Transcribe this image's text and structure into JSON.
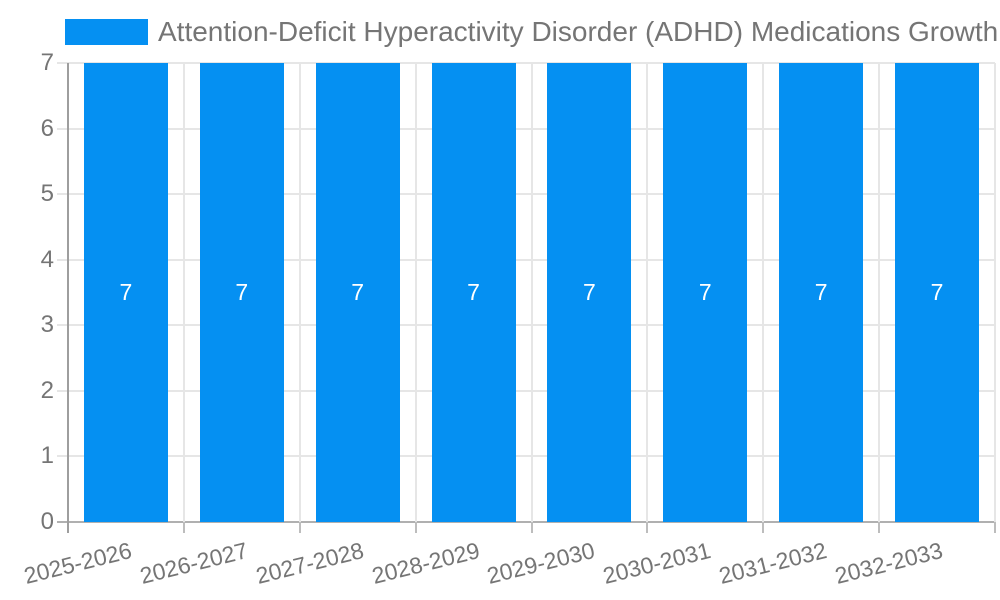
{
  "legend": {
    "series_label": "Attention-Deficit Hyperactivity Disorder (ADHD) Medications Growth (%)"
  },
  "chart_data": {
    "type": "bar",
    "title": "Attention-Deficit Hyperactivity Disorder (ADHD) Medications Growth (%)",
    "categories": [
      "2025-2026",
      "2026-2027",
      "2027-2028",
      "2028-2029",
      "2029-2030",
      "2030-2031",
      "2031-2032",
      "2032-2033"
    ],
    "values": [
      7,
      7,
      7,
      7,
      7,
      7,
      7,
      7
    ],
    "bar_value_labels": [
      "7",
      "7",
      "7",
      "7",
      "7",
      "7",
      "7",
      "7"
    ],
    "xlabel": "",
    "ylabel": "",
    "ylim": [
      0,
      7
    ],
    "yticks": [
      0,
      1,
      2,
      3,
      4,
      5,
      6,
      7
    ],
    "grid": true,
    "legend_position": "top-left",
    "x_tick_rotation_deg": -14
  },
  "colors": {
    "bar": "#0590f2",
    "grid": "#e6e6e6",
    "baseline": "#b0b0b0",
    "axis_line": "#9e9e9e",
    "tick": "#bdbdbd",
    "text": "#757575",
    "bar_label": "#ffffff",
    "background": "#ffffff"
  }
}
